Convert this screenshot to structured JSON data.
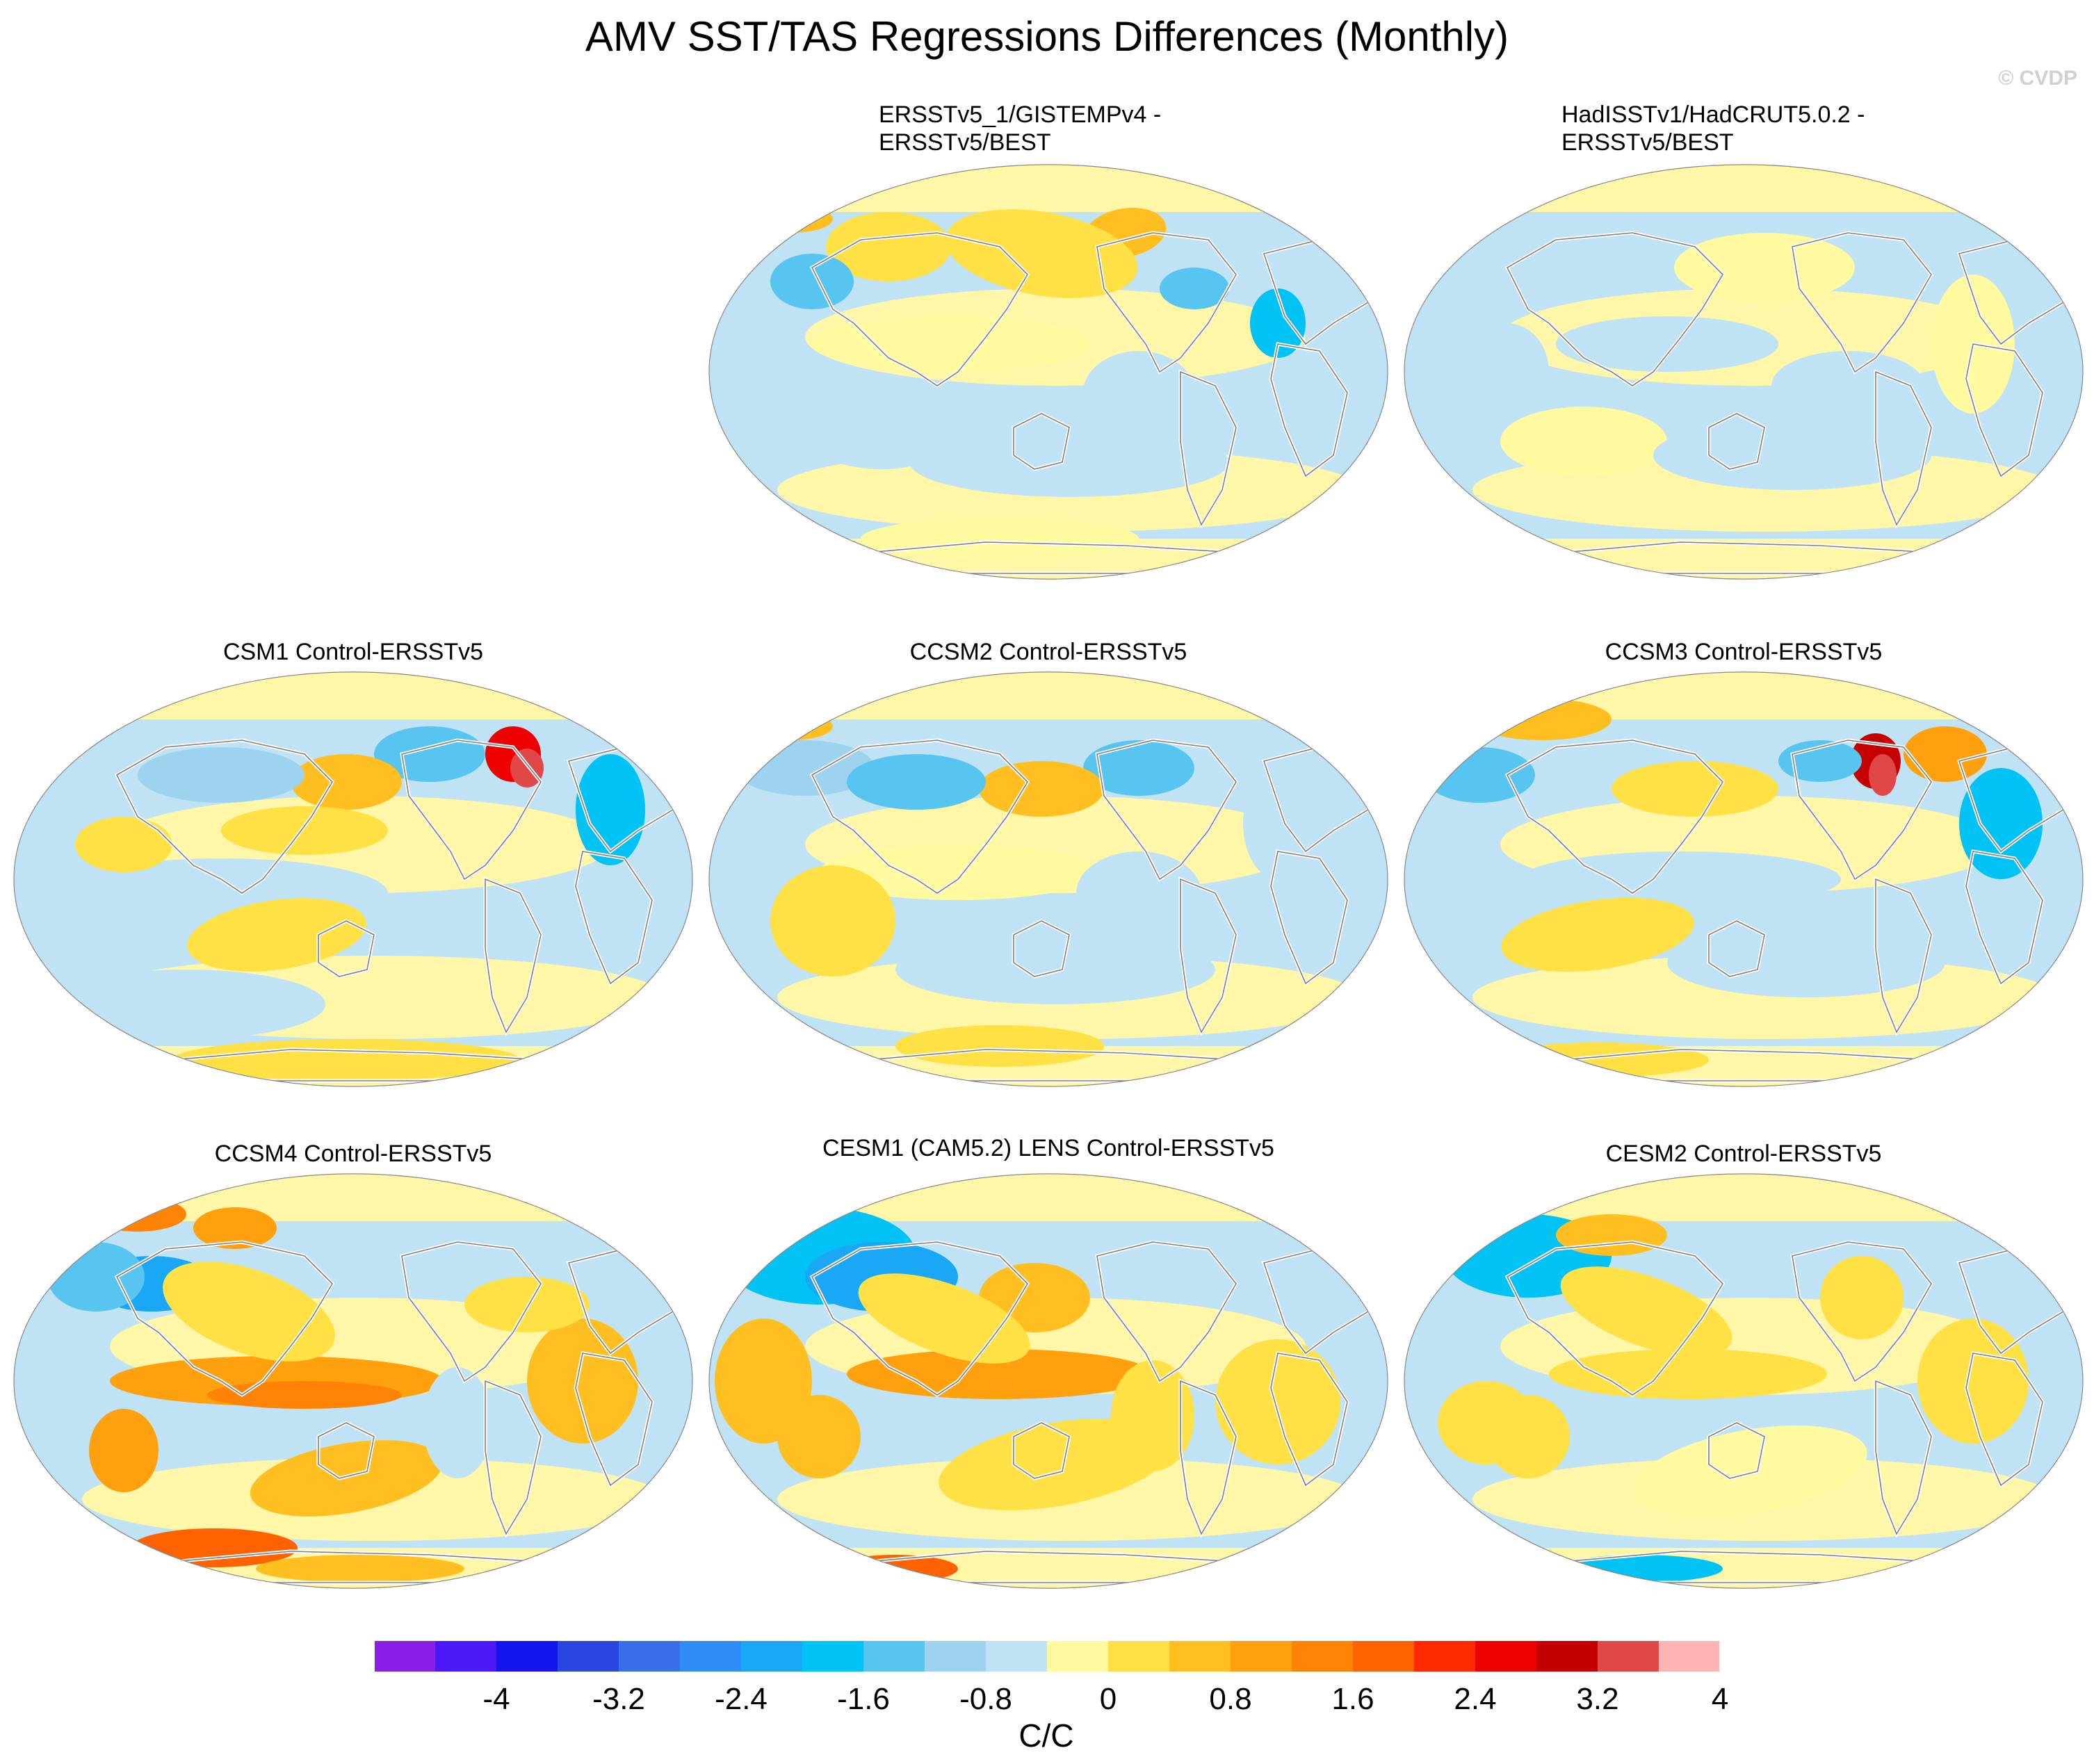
{
  "figure": {
    "title": "AMV SST/TAS Regressions Differences (Monthly)",
    "watermark": "© CVDP"
  },
  "panels": [
    {
      "id": "p1",
      "title": "ERSSTv5_1/GISTEMPv4 -\nERSSTv5/BEST"
    },
    {
      "id": "p2",
      "title": "HadISSTv1/HadCRUT5.0.2 -\nERSSTv5/BEST"
    },
    {
      "id": "p3",
      "title": "CSM1 Control-ERSSTv5"
    },
    {
      "id": "p4",
      "title": "CCSM2 Control-ERSSTv5"
    },
    {
      "id": "p5",
      "title": "CCSM3 Control-ERSSTv5"
    },
    {
      "id": "p6",
      "title": "CCSM4 Control-ERSSTv5"
    },
    {
      "id": "p7",
      "title": "CESM1 (CAM5.2) LENS Control-ERSSTv5"
    },
    {
      "id": "p8",
      "title": "CESM2 Control-ERSSTv5"
    }
  ],
  "colorbar": {
    "units": "C/C",
    "labels": [
      "-4",
      "-3.2",
      "-2.4",
      "-1.6",
      "-0.8",
      "0",
      "0.8",
      "1.6",
      "2.4",
      "3.2",
      "4"
    ],
    "colors": [
      "#8a1fe8",
      "#4c18f5",
      "#1414f0",
      "#2a46e0",
      "#3a6ee8",
      "#2f8bf6",
      "#1aa7f5",
      "#00c2f4",
      "#57c5f0",
      "#9ed3ef",
      "#bfe3f5",
      "#fffaa0",
      "#ffe045",
      "#ffbf20",
      "#ffa00e",
      "#ff8405",
      "#ff6200",
      "#ff2a00",
      "#ee0000",
      "#c40000",
      "#e04848",
      "#ffb4b4"
    ]
  },
  "colors": {
    "land_outline": "#808080",
    "ocean_neutral_pos": "#fff6a8",
    "ocean_neutral_neg": "#bfe3f5"
  }
}
